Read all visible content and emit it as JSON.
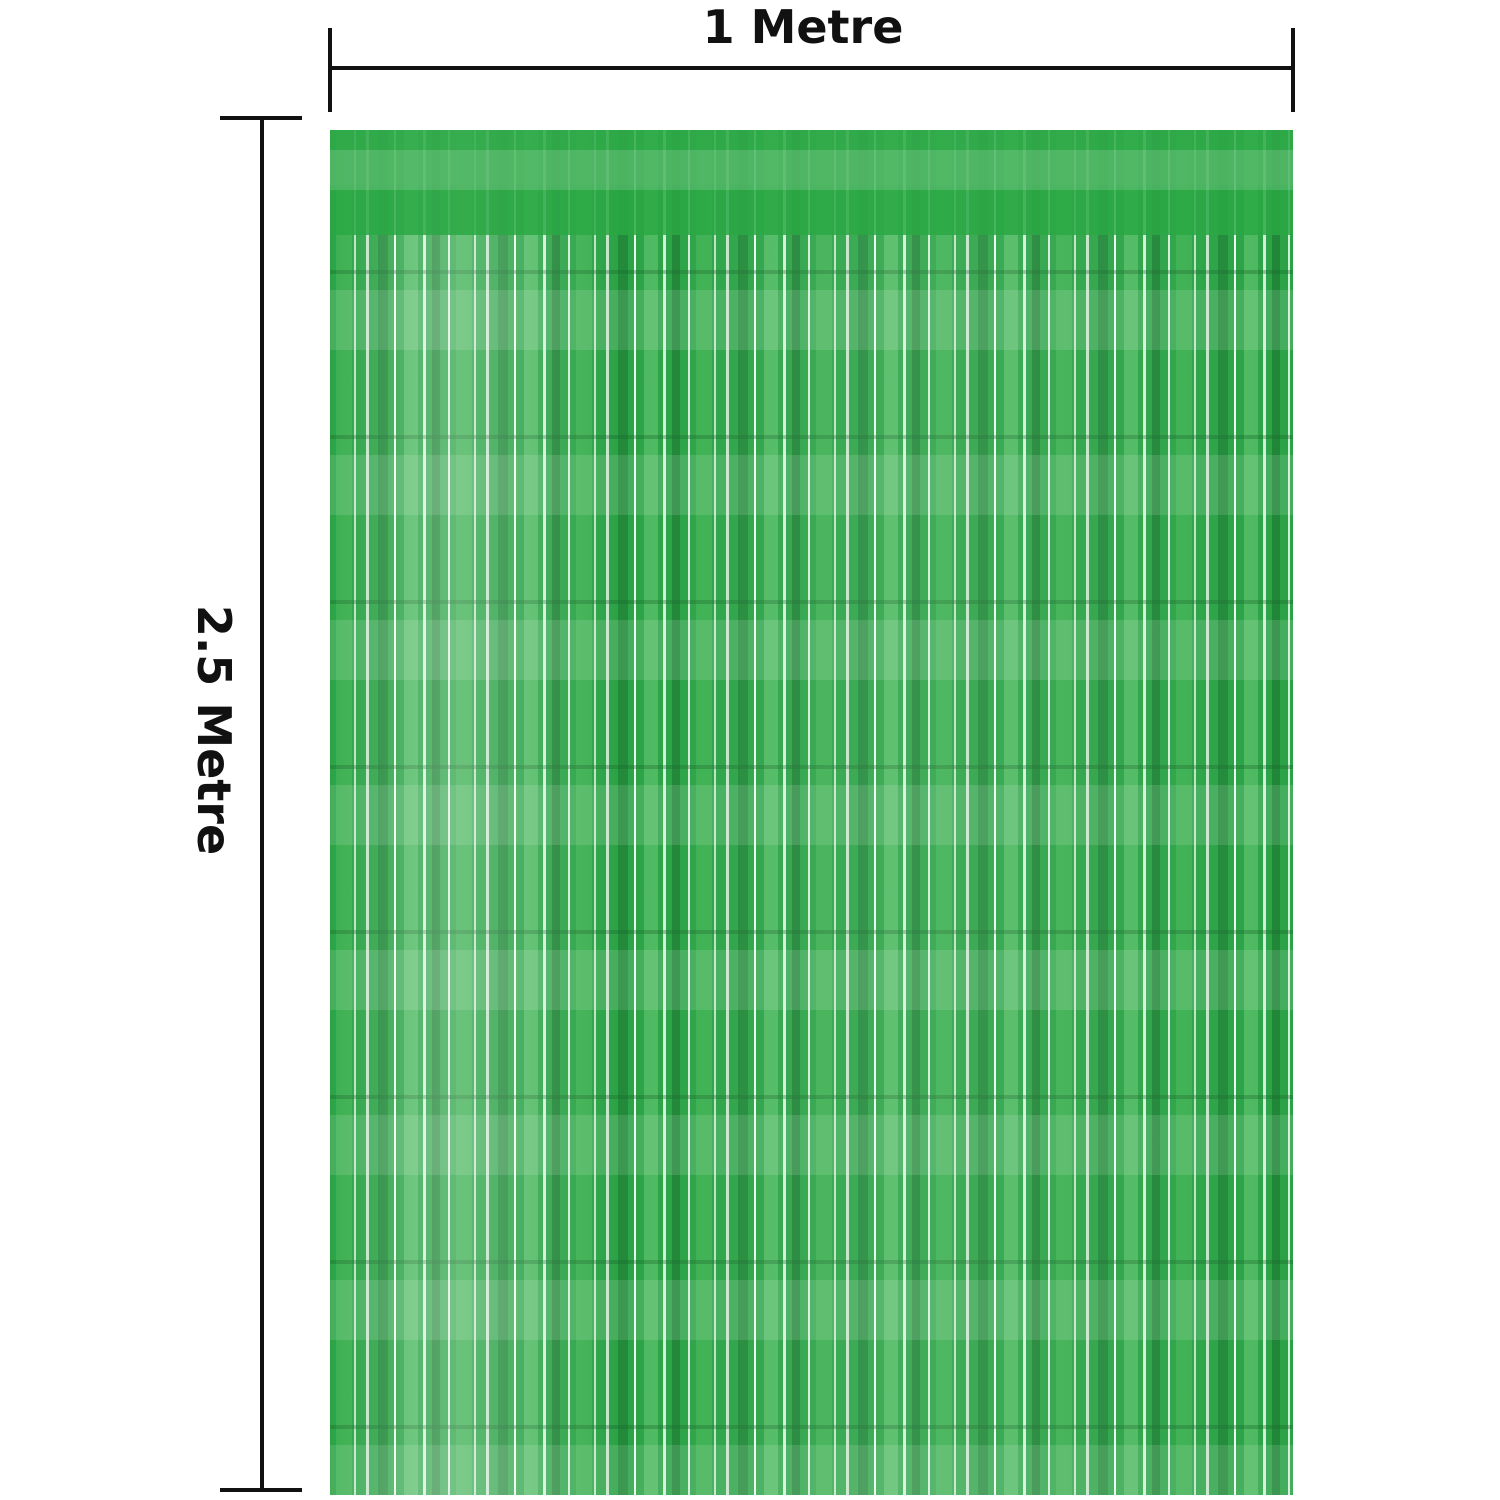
{
  "width_label": "1 Metre",
  "height_label": "2.5 Metre"
}
